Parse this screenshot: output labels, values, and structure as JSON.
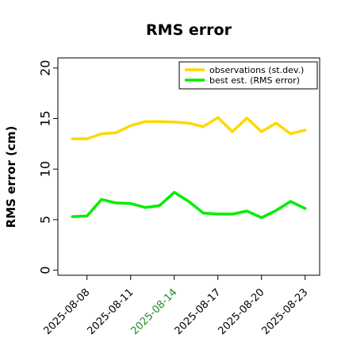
{
  "chart_data": {
    "type": "line",
    "title": "RMS error",
    "xlabel": "",
    "ylabel": "RMS error (cm)",
    "xlim": [
      "2025-08-06",
      "2025-08-24"
    ],
    "ylim": [
      -0.5,
      21
    ],
    "yticks": [
      0,
      5,
      10,
      15,
      20
    ],
    "ytick_labels": [
      "0",
      "5",
      "10",
      "15",
      "20"
    ],
    "xticks": [
      "2025-08-08",
      "2025-08-11",
      "2025-08-14",
      "2025-08-17",
      "2025-08-20",
      "2025-08-23"
    ],
    "xtick_labels": [
      "2025-08-08",
      "2025-08-11",
      "2025-08-14",
      "2025-08-17",
      "2025-08-20",
      "2025-08-23"
    ],
    "xtick_colors": [
      "#000000",
      "#000000",
      "#228b22",
      "#000000",
      "#000000",
      "#000000"
    ],
    "grid": false,
    "legend_position": "top-right",
    "x": [
      "2025-08-07",
      "2025-08-08",
      "2025-08-09",
      "2025-08-10",
      "2025-08-11",
      "2025-08-12",
      "2025-08-13",
      "2025-08-14",
      "2025-08-15",
      "2025-08-16",
      "2025-08-17",
      "2025-08-18",
      "2025-08-19",
      "2025-08-20",
      "2025-08-21",
      "2025-08-22",
      "2025-08-23"
    ],
    "series": [
      {
        "name": "observations (st.dev.)",
        "color": "#ffd700",
        "values": [
          13.0,
          13.0,
          13.5,
          13.6,
          14.3,
          14.7,
          14.7,
          14.65,
          14.55,
          14.2,
          15.1,
          13.7,
          15.05,
          13.7,
          14.55,
          13.5,
          13.85
        ]
      },
      {
        "name": "best est. (RMS error)",
        "color": "#00ee00",
        "values": [
          5.3,
          5.35,
          7.0,
          6.65,
          6.6,
          6.2,
          6.4,
          7.7,
          6.8,
          5.65,
          5.55,
          5.55,
          5.85,
          5.2,
          5.9,
          6.8,
          6.1
        ]
      }
    ]
  }
}
